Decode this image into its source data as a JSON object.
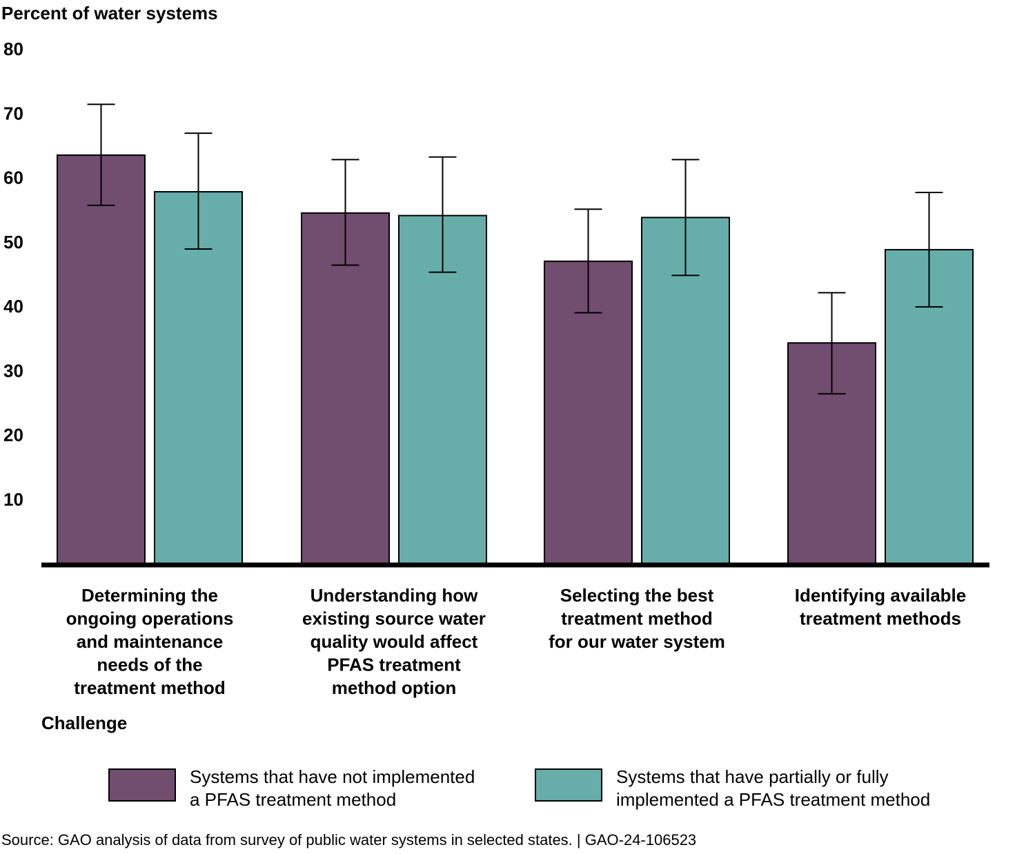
{
  "chart_data": {
    "type": "bar",
    "ylabel": "Percent of water systems",
    "xlabel": "Challenge",
    "ylim": [
      0,
      80
    ],
    "yticks": [
      10,
      20,
      30,
      40,
      50,
      60,
      70,
      80
    ],
    "grid": false,
    "error_bars": true,
    "categories": [
      [
        "Determining the",
        "ongoing operations",
        "and maintenance",
        "needs of the",
        "treatment method"
      ],
      [
        "Understanding how",
        "existing source water",
        "quality would affect",
        "PFAS treatment",
        "method option"
      ],
      [
        "Selecting the best",
        "treatment method",
        "for our water system"
      ],
      [
        "Identifying available",
        "treatment methods"
      ]
    ],
    "series": [
      {
        "name": [
          "Systems that have not implemented",
          "a PFAS treatment method"
        ],
        "color": "#714d6f",
        "values": [
          63.5,
          54.5,
          47.0,
          34.3
        ],
        "err_low": [
          55.7,
          46.4,
          39.0,
          26.4
        ],
        "err_high": [
          71.4,
          62.8,
          55.1,
          42.1
        ]
      },
      {
        "name": [
          "Systems that have partially or fully",
          "implemented a PFAS treatment method"
        ],
        "color": "#67aeaa",
        "values": [
          57.8,
          54.1,
          53.8,
          48.8
        ],
        "err_low": [
          48.9,
          45.3,
          44.8,
          39.9
        ],
        "err_high": [
          66.9,
          63.2,
          62.8,
          57.7
        ]
      }
    ]
  },
  "source_note": "Source: GAO analysis of data from survey of public water systems in selected states.  |  GAO-24-106523"
}
